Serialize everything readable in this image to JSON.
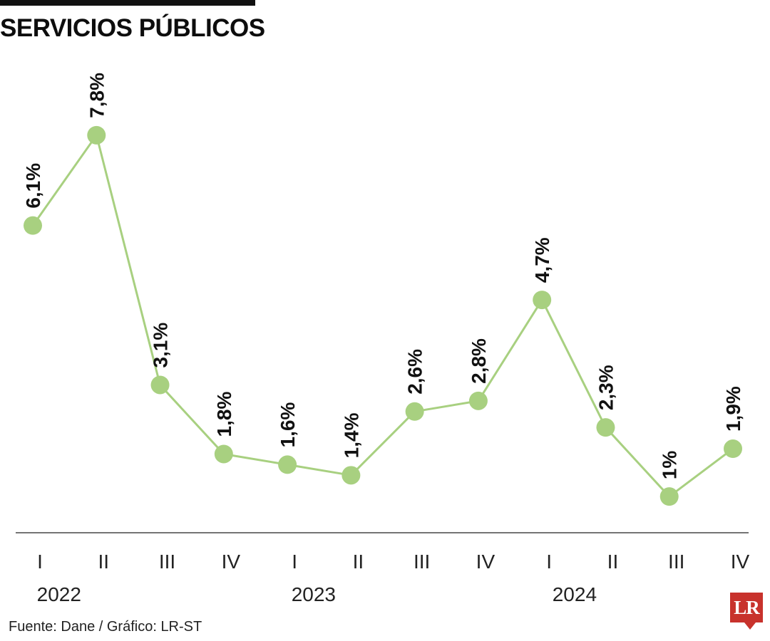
{
  "title": "SERVICIOS PÚBLICOS",
  "source": "Fuente: Dane / Gráfico: LR-ST",
  "logo_text": "LR",
  "colors": {
    "line": "#a8d080",
    "point": "#a8d080",
    "axis": "#222222",
    "text": "#111111",
    "logo": "#c8322c"
  },
  "chart_data": {
    "type": "line",
    "title": "SERVICIOS PÚBLICOS",
    "categories": [
      "I",
      "II",
      "III",
      "IV",
      "I",
      "II",
      "III",
      "IV",
      "I",
      "II",
      "III",
      "IV"
    ],
    "year_labels": [
      {
        "label": "2022",
        "index": 0.3
      },
      {
        "label": "2023",
        "index": 4.3
      },
      {
        "label": "2024",
        "index": 8.4
      }
    ],
    "series": [
      {
        "values": [
          6.1,
          7.8,
          3.1,
          1.8,
          1.6,
          1.4,
          2.6,
          2.8,
          4.7,
          2.3,
          1.0,
          1.9
        ],
        "labels": [
          "6,1%",
          "7,8%",
          "3,1%",
          "1,8%",
          "1,6%",
          "1,4%",
          "2,6%",
          "2,8%",
          "4,7%",
          "2,3%",
          "1%",
          "1,9%"
        ]
      }
    ],
    "xlabel": "",
    "ylabel": "",
    "ylim": [
      0.6,
      8.2
    ],
    "grid": false,
    "legend": "none"
  }
}
